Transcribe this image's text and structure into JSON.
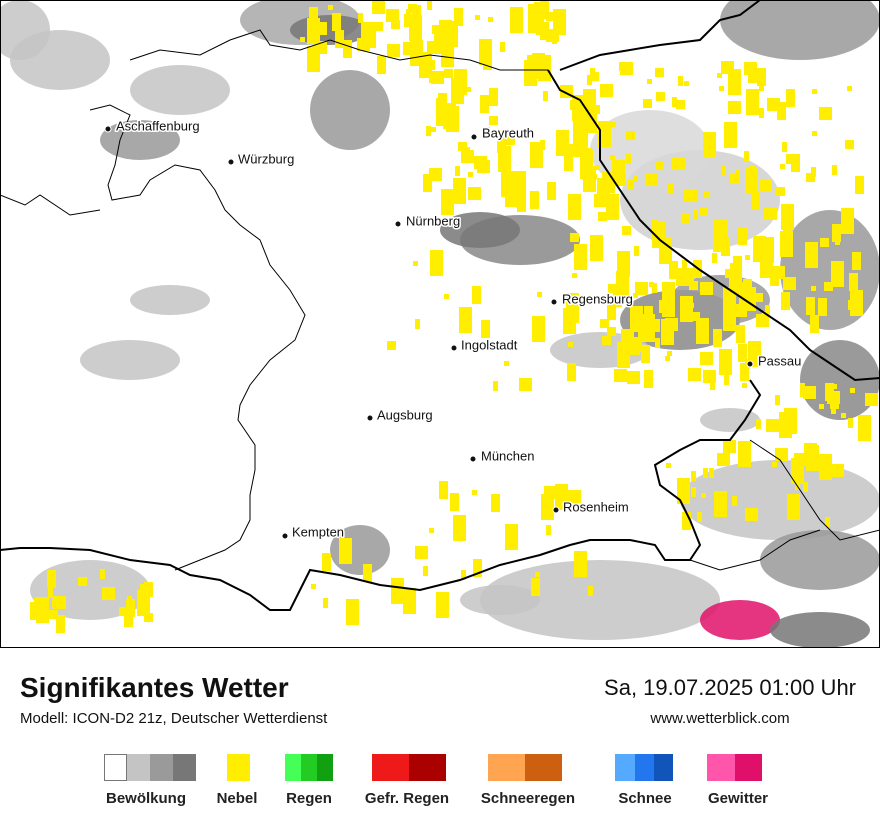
{
  "map": {
    "cities": [
      "Aschaffenburg",
      "Würzburg",
      "Bayreuth",
      "Nürnberg",
      "Regensburg",
      "Ingolstadt",
      "Passau",
      "Augsburg",
      "München",
      "Rosenheim",
      "Kempten"
    ]
  },
  "footer": {
    "title": "Signifikantes Wetter",
    "model": "Modell: ICON-D2 21z, Deutscher Wetterdienst",
    "datetime": "Sa, 19.07.2025 01:00 Uhr",
    "website": "www.wetterblick.com"
  },
  "legend": [
    "Bewölkung",
    "Nebel",
    "Regen",
    "Gefr. Regen",
    "Schneeregen",
    "Schnee",
    "Gewitter"
  ]
}
